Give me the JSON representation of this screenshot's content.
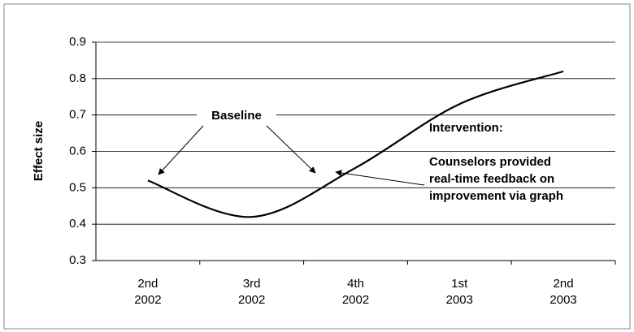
{
  "chart_data": {
    "type": "line",
    "ylabel": "Effect size",
    "categories": [
      "2nd 2002",
      "3rd 2002",
      "4th 2002",
      "1st 2003",
      "2nd 2003"
    ],
    "series": [
      {
        "name": "Effect size",
        "color": "#000000",
        "values": [
          0.52,
          0.42,
          0.555,
          0.73,
          0.82
        ]
      }
    ],
    "ylim": [
      0.3,
      0.9
    ],
    "yticks": [
      0.3,
      0.4,
      0.5,
      0.6,
      0.7,
      0.8,
      0.9
    ],
    "grid": true,
    "annotations": [
      "Baseline",
      "Intervention:",
      "Counselors provided",
      "real-time feedback on",
      "improvement via graph"
    ]
  }
}
